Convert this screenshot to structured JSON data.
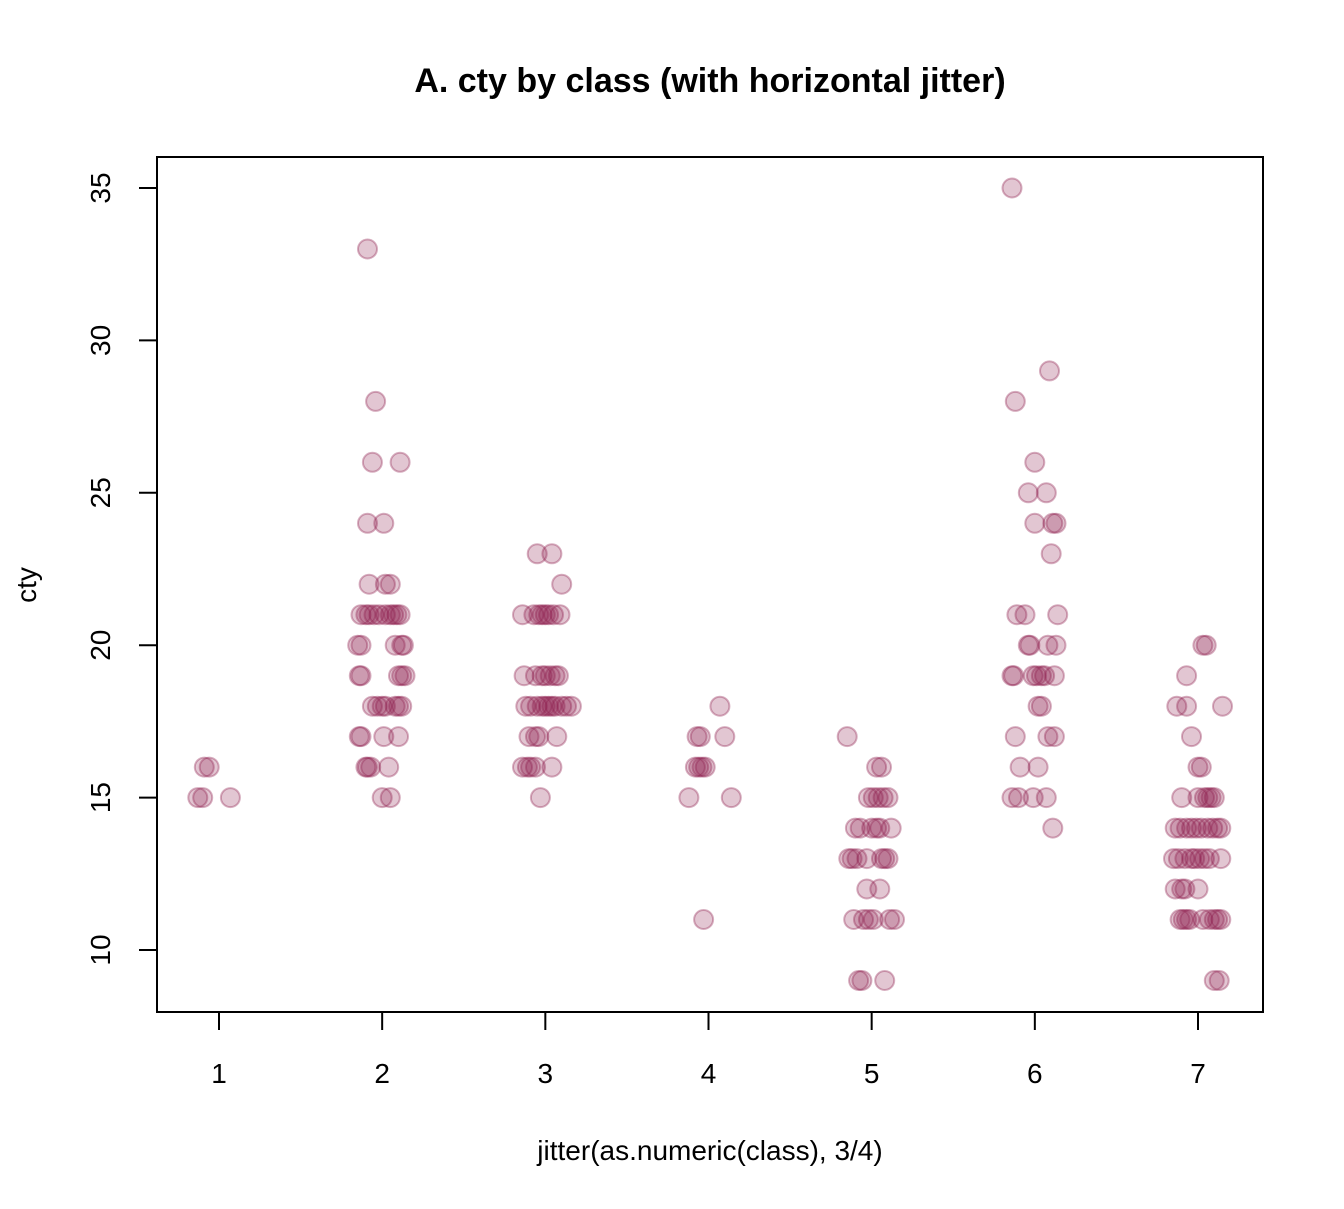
{
  "chart_data": {
    "type": "scatter",
    "title": "A. cty by class (with horizontal jitter)",
    "xlabel": "jitter(as.numeric(class), 3/4)",
    "ylabel": "cty",
    "xlim": [
      0.62,
      7.4
    ],
    "ylim": [
      8,
      36
    ],
    "x_ticks": [
      1,
      2,
      3,
      4,
      5,
      6,
      7
    ],
    "y_ticks": [
      10,
      15,
      20,
      25,
      30,
      35
    ],
    "grid": false,
    "legend": null,
    "point_color": "#8B1A4A",
    "point_alpha": 0.25,
    "series": [
      {
        "name": "cty",
        "points": [
          {
            "x": 0.87,
            "y": 15
          },
          {
            "x": 0.9,
            "y": 15
          },
          {
            "x": 1.07,
            "y": 15
          },
          {
            "x": 0.91,
            "y": 16
          },
          {
            "x": 0.94,
            "y": 16
          },
          {
            "x": 1.91,
            "y": 33
          },
          {
            "x": 1.96,
            "y": 28
          },
          {
            "x": 1.94,
            "y": 26
          },
          {
            "x": 2.11,
            "y": 26
          },
          {
            "x": 1.91,
            "y": 24
          },
          {
            "x": 2.01,
            "y": 24
          },
          {
            "x": 1.92,
            "y": 22
          },
          {
            "x": 2.02,
            "y": 22
          },
          {
            "x": 2.05,
            "y": 22
          },
          {
            "x": 1.87,
            "y": 21
          },
          {
            "x": 1.9,
            "y": 21
          },
          {
            "x": 1.92,
            "y": 21
          },
          {
            "x": 1.95,
            "y": 21
          },
          {
            "x": 1.98,
            "y": 21
          },
          {
            "x": 2.02,
            "y": 21
          },
          {
            "x": 2.05,
            "y": 21
          },
          {
            "x": 2.07,
            "y": 21
          },
          {
            "x": 2.09,
            "y": 21
          },
          {
            "x": 2.11,
            "y": 21
          },
          {
            "x": 1.85,
            "y": 20
          },
          {
            "x": 1.87,
            "y": 20
          },
          {
            "x": 2.08,
            "y": 20
          },
          {
            "x": 2.12,
            "y": 20
          },
          {
            "x": 2.13,
            "y": 20
          },
          {
            "x": 1.86,
            "y": 19
          },
          {
            "x": 1.87,
            "y": 19
          },
          {
            "x": 2.1,
            "y": 19
          },
          {
            "x": 2.12,
            "y": 19
          },
          {
            "x": 2.14,
            "y": 19
          },
          {
            "x": 1.94,
            "y": 18
          },
          {
            "x": 1.97,
            "y": 18
          },
          {
            "x": 2.0,
            "y": 18
          },
          {
            "x": 2.02,
            "y": 18
          },
          {
            "x": 2.08,
            "y": 18
          },
          {
            "x": 2.1,
            "y": 18
          },
          {
            "x": 2.12,
            "y": 18
          },
          {
            "x": 1.86,
            "y": 17
          },
          {
            "x": 1.87,
            "y": 17
          },
          {
            "x": 2.01,
            "y": 17
          },
          {
            "x": 2.1,
            "y": 17
          },
          {
            "x": 1.9,
            "y": 16
          },
          {
            "x": 1.91,
            "y": 16
          },
          {
            "x": 1.93,
            "y": 16
          },
          {
            "x": 2.04,
            "y": 16
          },
          {
            "x": 2.0,
            "y": 15
          },
          {
            "x": 2.05,
            "y": 15
          },
          {
            "x": 2.95,
            "y": 23
          },
          {
            "x": 3.04,
            "y": 23
          },
          {
            "x": 3.1,
            "y": 22
          },
          {
            "x": 2.86,
            "y": 21
          },
          {
            "x": 2.93,
            "y": 21
          },
          {
            "x": 2.96,
            "y": 21
          },
          {
            "x": 2.98,
            "y": 21
          },
          {
            "x": 3.0,
            "y": 21
          },
          {
            "x": 3.02,
            "y": 21
          },
          {
            "x": 3.05,
            "y": 21
          },
          {
            "x": 3.09,
            "y": 21
          },
          {
            "x": 2.87,
            "y": 19
          },
          {
            "x": 2.94,
            "y": 19
          },
          {
            "x": 2.98,
            "y": 19
          },
          {
            "x": 3.0,
            "y": 19
          },
          {
            "x": 3.03,
            "y": 19
          },
          {
            "x": 3.06,
            "y": 19
          },
          {
            "x": 3.08,
            "y": 19
          },
          {
            "x": 2.88,
            "y": 18
          },
          {
            "x": 2.91,
            "y": 18
          },
          {
            "x": 2.95,
            "y": 18
          },
          {
            "x": 2.98,
            "y": 18
          },
          {
            "x": 3.0,
            "y": 18
          },
          {
            "x": 3.02,
            "y": 18
          },
          {
            "x": 3.04,
            "y": 18
          },
          {
            "x": 3.06,
            "y": 18
          },
          {
            "x": 3.1,
            "y": 18
          },
          {
            "x": 3.13,
            "y": 18
          },
          {
            "x": 3.16,
            "y": 18
          },
          {
            "x": 2.9,
            "y": 17
          },
          {
            "x": 2.94,
            "y": 17
          },
          {
            "x": 2.96,
            "y": 17
          },
          {
            "x": 3.07,
            "y": 17
          },
          {
            "x": 2.86,
            "y": 16
          },
          {
            "x": 2.89,
            "y": 16
          },
          {
            "x": 2.91,
            "y": 16
          },
          {
            "x": 2.94,
            "y": 16
          },
          {
            "x": 3.04,
            "y": 16
          },
          {
            "x": 2.97,
            "y": 15
          },
          {
            "x": 4.07,
            "y": 18
          },
          {
            "x": 3.93,
            "y": 17
          },
          {
            "x": 3.95,
            "y": 17
          },
          {
            "x": 4.1,
            "y": 17
          },
          {
            "x": 3.92,
            "y": 16
          },
          {
            "x": 3.94,
            "y": 16
          },
          {
            "x": 3.96,
            "y": 16
          },
          {
            "x": 3.98,
            "y": 16
          },
          {
            "x": 3.88,
            "y": 15
          },
          {
            "x": 4.14,
            "y": 15
          },
          {
            "x": 3.97,
            "y": 11
          },
          {
            "x": 4.85,
            "y": 17
          },
          {
            "x": 5.03,
            "y": 16
          },
          {
            "x": 5.06,
            "y": 16
          },
          {
            "x": 4.98,
            "y": 15
          },
          {
            "x": 5.01,
            "y": 15
          },
          {
            "x": 5.04,
            "y": 15
          },
          {
            "x": 5.07,
            "y": 15
          },
          {
            "x": 5.1,
            "y": 15
          },
          {
            "x": 4.9,
            "y": 14
          },
          {
            "x": 4.93,
            "y": 14
          },
          {
            "x": 5.0,
            "y": 14
          },
          {
            "x": 5.03,
            "y": 14
          },
          {
            "x": 5.05,
            "y": 14
          },
          {
            "x": 5.12,
            "y": 14
          },
          {
            "x": 4.86,
            "y": 13
          },
          {
            "x": 4.88,
            "y": 13
          },
          {
            "x": 4.91,
            "y": 13
          },
          {
            "x": 4.97,
            "y": 13
          },
          {
            "x": 5.06,
            "y": 13
          },
          {
            "x": 5.08,
            "y": 13
          },
          {
            "x": 5.1,
            "y": 13
          },
          {
            "x": 4.97,
            "y": 12
          },
          {
            "x": 5.05,
            "y": 12
          },
          {
            "x": 4.89,
            "y": 11
          },
          {
            "x": 4.95,
            "y": 11
          },
          {
            "x": 4.98,
            "y": 11
          },
          {
            "x": 5.01,
            "y": 11
          },
          {
            "x": 5.11,
            "y": 11
          },
          {
            "x": 5.14,
            "y": 11
          },
          {
            "x": 4.92,
            "y": 9
          },
          {
            "x": 4.94,
            "y": 9
          },
          {
            "x": 5.08,
            "y": 9
          },
          {
            "x": 5.86,
            "y": 35
          },
          {
            "x": 6.09,
            "y": 29
          },
          {
            "x": 5.88,
            "y": 28
          },
          {
            "x": 6.0,
            "y": 26
          },
          {
            "x": 5.96,
            "y": 25
          },
          {
            "x": 6.07,
            "y": 25
          },
          {
            "x": 6.0,
            "y": 24
          },
          {
            "x": 6.11,
            "y": 24
          },
          {
            "x": 6.13,
            "y": 24
          },
          {
            "x": 6.1,
            "y": 23
          },
          {
            "x": 5.89,
            "y": 21
          },
          {
            "x": 5.94,
            "y": 21
          },
          {
            "x": 6.14,
            "y": 21
          },
          {
            "x": 5.96,
            "y": 20
          },
          {
            "x": 5.97,
            "y": 20
          },
          {
            "x": 6.08,
            "y": 20
          },
          {
            "x": 6.13,
            "y": 20
          },
          {
            "x": 5.86,
            "y": 19
          },
          {
            "x": 5.87,
            "y": 19
          },
          {
            "x": 5.99,
            "y": 19
          },
          {
            "x": 6.01,
            "y": 19
          },
          {
            "x": 6.04,
            "y": 19
          },
          {
            "x": 6.06,
            "y": 19
          },
          {
            "x": 6.12,
            "y": 19
          },
          {
            "x": 6.02,
            "y": 18
          },
          {
            "x": 6.04,
            "y": 18
          },
          {
            "x": 5.88,
            "y": 17
          },
          {
            "x": 6.08,
            "y": 17
          },
          {
            "x": 6.12,
            "y": 17
          },
          {
            "x": 5.91,
            "y": 16
          },
          {
            "x": 6.02,
            "y": 16
          },
          {
            "x": 5.86,
            "y": 15
          },
          {
            "x": 5.9,
            "y": 15
          },
          {
            "x": 5.99,
            "y": 15
          },
          {
            "x": 6.07,
            "y": 15
          },
          {
            "x": 6.11,
            "y": 14
          },
          {
            "x": 7.03,
            "y": 20
          },
          {
            "x": 7.05,
            "y": 20
          },
          {
            "x": 6.93,
            "y": 19
          },
          {
            "x": 6.87,
            "y": 18
          },
          {
            "x": 6.93,
            "y": 18
          },
          {
            "x": 7.15,
            "y": 18
          },
          {
            "x": 6.96,
            "y": 17
          },
          {
            "x": 7.0,
            "y": 16
          },
          {
            "x": 7.02,
            "y": 16
          },
          {
            "x": 6.9,
            "y": 15
          },
          {
            "x": 7.0,
            "y": 15
          },
          {
            "x": 7.04,
            "y": 15
          },
          {
            "x": 7.06,
            "y": 15
          },
          {
            "x": 7.08,
            "y": 15
          },
          {
            "x": 7.1,
            "y": 15
          },
          {
            "x": 6.86,
            "y": 14
          },
          {
            "x": 6.89,
            "y": 14
          },
          {
            "x": 6.93,
            "y": 14
          },
          {
            "x": 6.96,
            "y": 14
          },
          {
            "x": 6.99,
            "y": 14
          },
          {
            "x": 7.02,
            "y": 14
          },
          {
            "x": 7.06,
            "y": 14
          },
          {
            "x": 7.09,
            "y": 14
          },
          {
            "x": 7.12,
            "y": 14
          },
          {
            "x": 7.14,
            "y": 14
          },
          {
            "x": 6.85,
            "y": 13
          },
          {
            "x": 6.88,
            "y": 13
          },
          {
            "x": 6.92,
            "y": 13
          },
          {
            "x": 6.96,
            "y": 13
          },
          {
            "x": 6.98,
            "y": 13
          },
          {
            "x": 7.01,
            "y": 13
          },
          {
            "x": 7.04,
            "y": 13
          },
          {
            "x": 7.07,
            "y": 13
          },
          {
            "x": 7.14,
            "y": 13
          },
          {
            "x": 6.86,
            "y": 12
          },
          {
            "x": 6.9,
            "y": 12
          },
          {
            "x": 6.92,
            "y": 12
          },
          {
            "x": 7.0,
            "y": 12
          },
          {
            "x": 6.89,
            "y": 11
          },
          {
            "x": 6.91,
            "y": 11
          },
          {
            "x": 6.93,
            "y": 11
          },
          {
            "x": 6.95,
            "y": 11
          },
          {
            "x": 7.03,
            "y": 11
          },
          {
            "x": 7.07,
            "y": 11
          },
          {
            "x": 7.1,
            "y": 11
          },
          {
            "x": 7.12,
            "y": 11
          },
          {
            "x": 7.14,
            "y": 11
          },
          {
            "x": 7.1,
            "y": 9
          },
          {
            "x": 7.13,
            "y": 9
          }
        ]
      }
    ]
  }
}
